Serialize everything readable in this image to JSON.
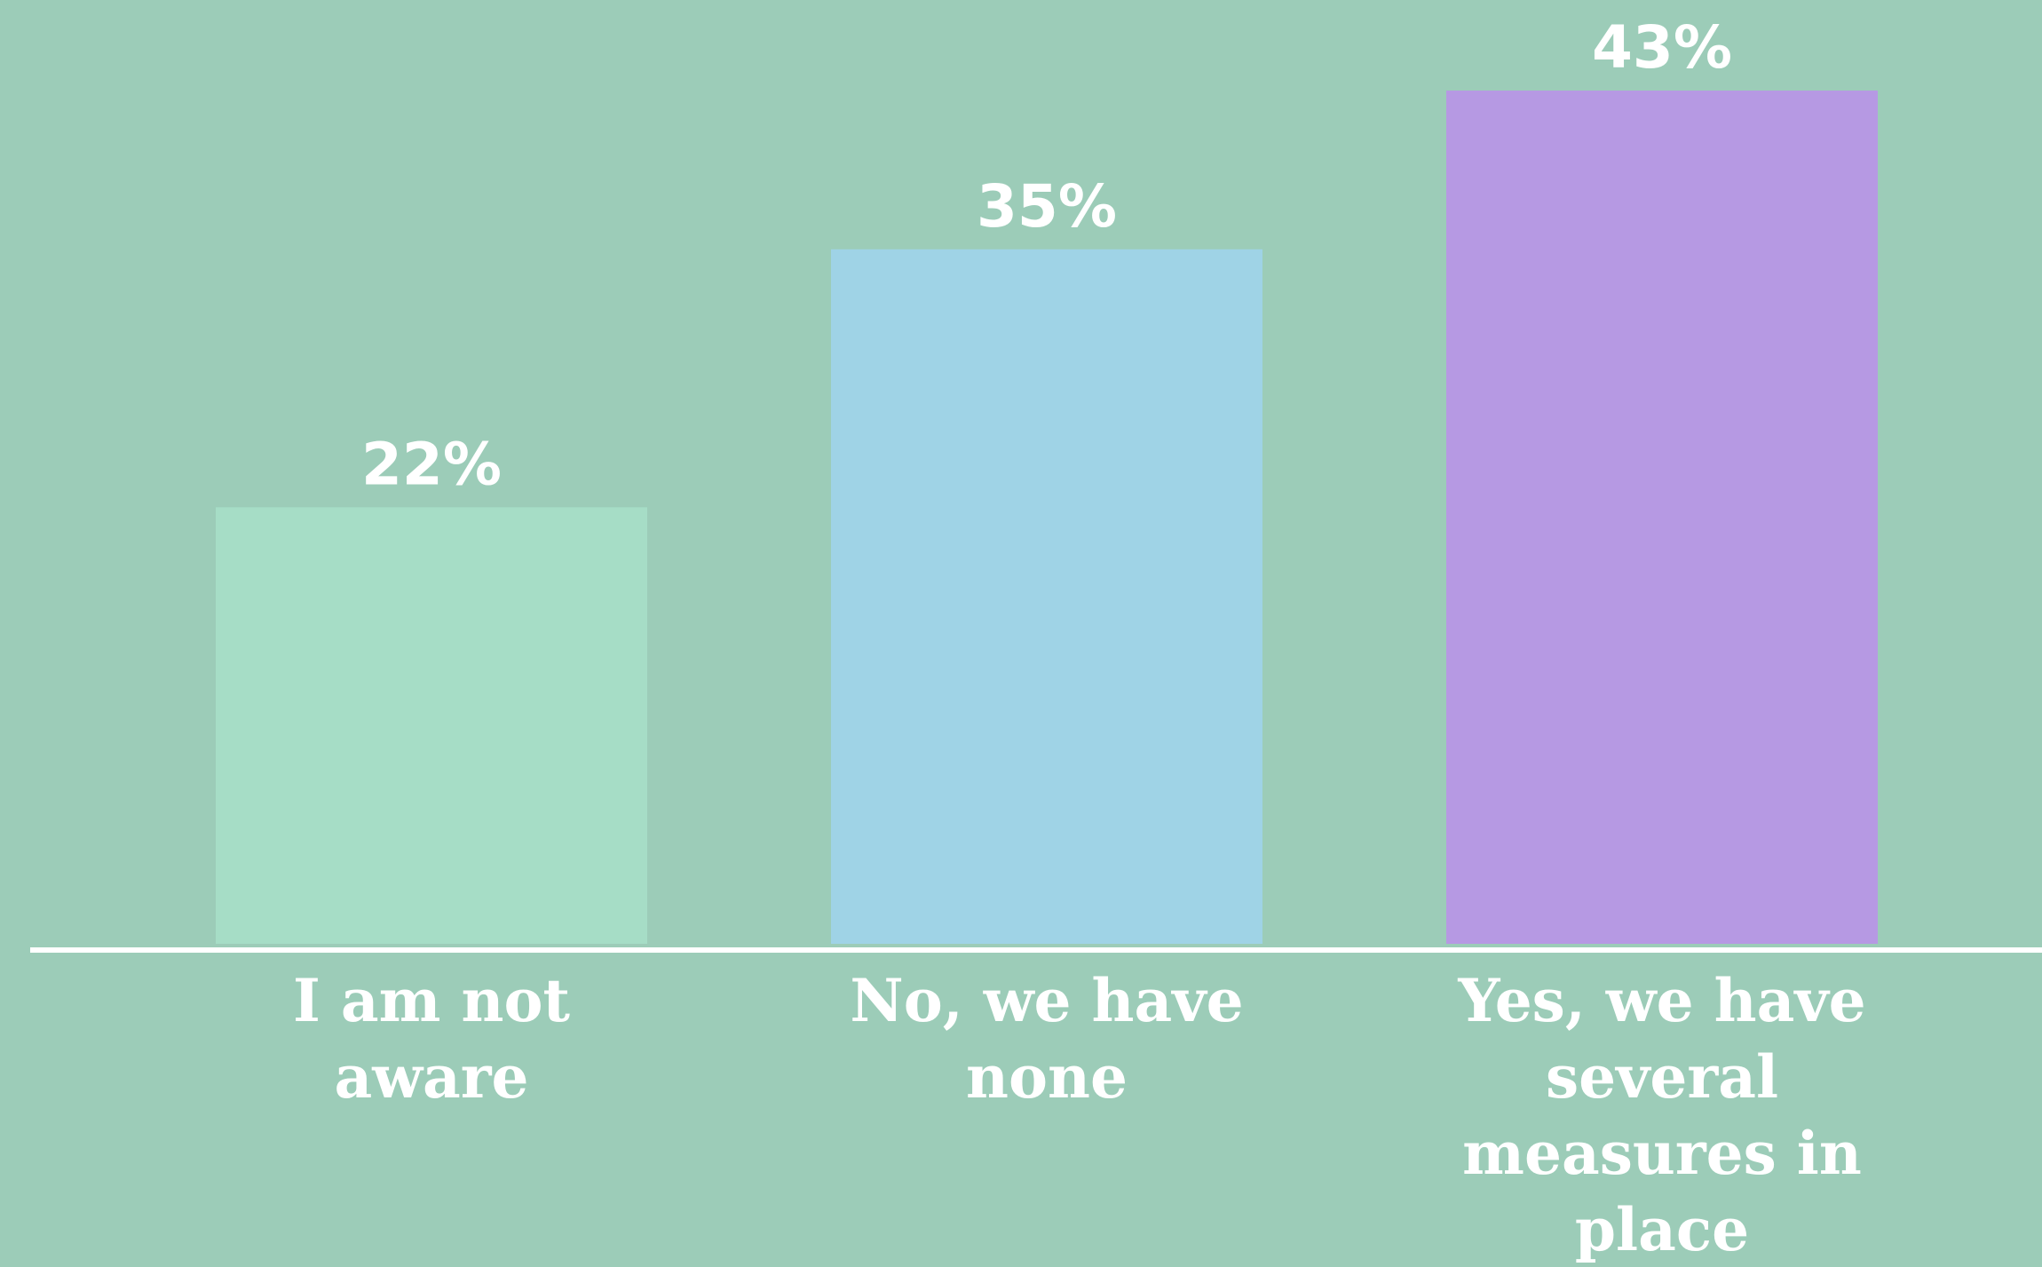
{
  "chart_data": {
    "type": "bar",
    "categories": [
      "I am not aware",
      "No, we have none",
      "Yes, we have several measures in place"
    ],
    "values": [
      22,
      35,
      43
    ],
    "value_labels": [
      "22%",
      "35%",
      "43%"
    ],
    "category_label_lines": [
      [
        "I am not",
        "aware"
      ],
      [
        "No, we have",
        "none"
      ],
      [
        "Yes, we have",
        "several",
        "measures in",
        "place"
      ]
    ],
    "colors": [
      "#a6ddc6",
      "#9fd3e6",
      "#b699e3"
    ],
    "background_color": "#9cccb8",
    "axis_color": "#ffffff",
    "ylim": [
      0,
      43
    ],
    "grid": false,
    "legend": "none"
  }
}
